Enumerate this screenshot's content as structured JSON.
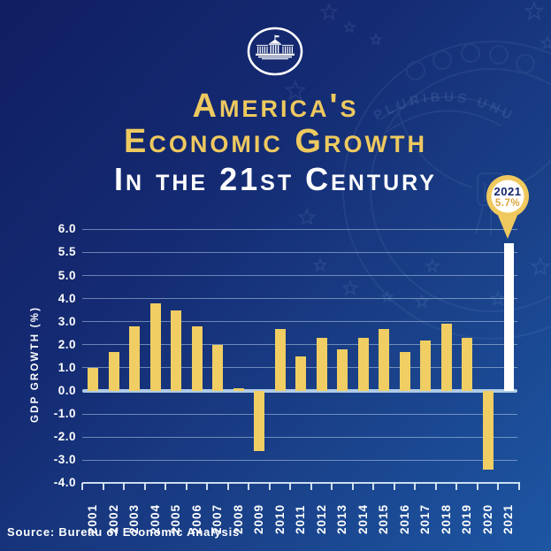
{
  "header": {
    "logo": "white-house-logo",
    "title_line1": "America's",
    "title_line2": "Economic Growth",
    "title_line3": "In the 21st Century"
  },
  "callout": {
    "year": "2021",
    "value": "5.7%"
  },
  "chart_data": {
    "type": "bar",
    "title": "America's Economic Growth in the 21st Century",
    "xlabel": "",
    "ylabel": "GDP Growth (%)",
    "categories": [
      "2001",
      "2002",
      "2003",
      "2004",
      "2005",
      "2006",
      "2007",
      "2008",
      "2009",
      "2010",
      "2011",
      "2012",
      "2013",
      "2014",
      "2015",
      "2016",
      "2017",
      "2018",
      "2019",
      "2020",
      "2021"
    ],
    "values": [
      1.0,
      1.7,
      2.8,
      3.8,
      3.5,
      2.8,
      2.0,
      0.1,
      -2.6,
      2.7,
      1.5,
      2.3,
      1.8,
      2.3,
      2.7,
      1.7,
      2.2,
      2.9,
      2.3,
      -3.4,
      5.7
    ],
    "highlight_index": 20,
    "highlight_label": "2021 5.7%",
    "y_ticks": [
      6.0,
      5.5,
      5.0,
      4.0,
      3.0,
      2.0,
      1.0,
      0.0,
      -1.0,
      -2.0,
      -3.0,
      -4.0
    ],
    "y_tick_labels": [
      "6.0",
      "5.5",
      "5.0",
      "4.0",
      "3.0",
      "2.0",
      "1.0",
      "0.0",
      "-1.0",
      "-2.0",
      "-3.0",
      "-4.0"
    ],
    "ylim": [
      -4.0,
      6.0
    ],
    "axis_scale_note": "gridlines evenly spaced; 1.0 increments below 5.0 and 0.5 increments above 5.0",
    "grid": true,
    "legend": false,
    "x_labels_rotated_90": true
  },
  "footer": {
    "source": "Source: Bureau of Economic Analysis"
  },
  "colors": {
    "background_top": "#111E61",
    "background_bottom": "#1D56A3",
    "title_gold": "#EEC95F",
    "bar_gold": "#F0CE63",
    "highlight_bar": "#FFFFFF",
    "zero_line": "#AFCBE8",
    "gridline": "#C6DCF3",
    "callout_year_text": "#13246B",
    "callout_value_text": "#DFA63E",
    "watermark": "#A9C7EC"
  }
}
